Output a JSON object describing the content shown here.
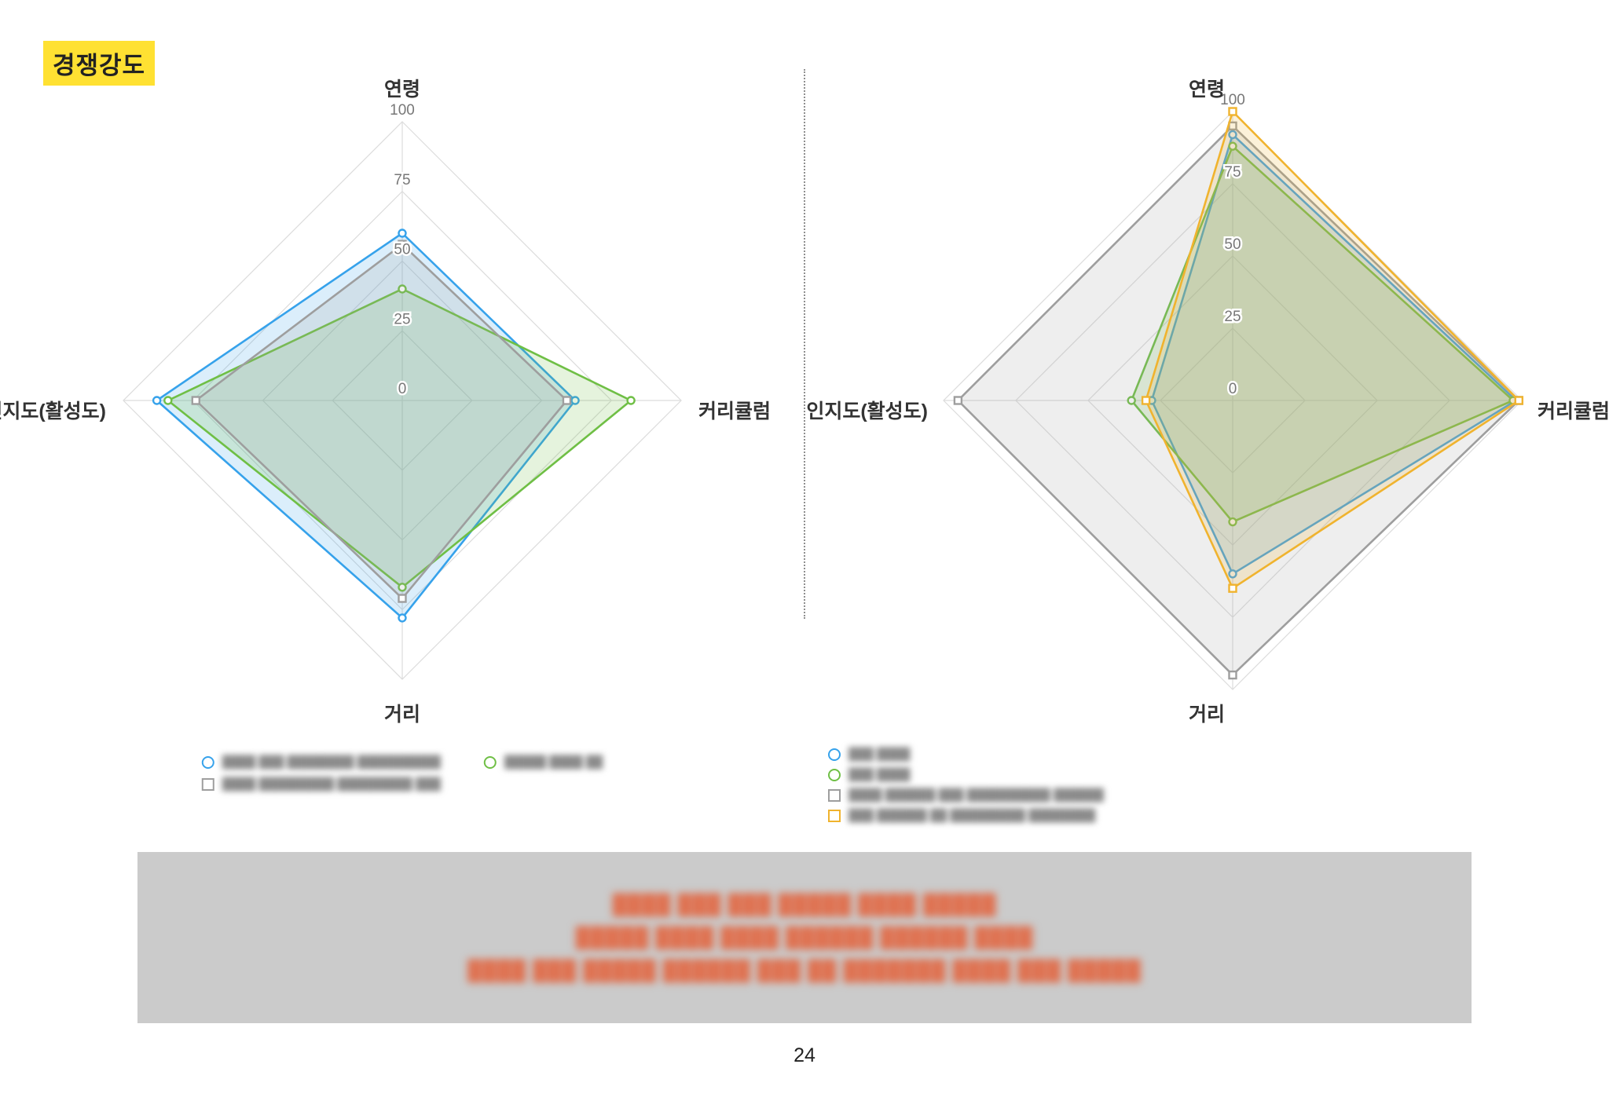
{
  "header": {
    "badge": "경쟁강도"
  },
  "page": {
    "number": "24"
  },
  "chart_data": [
    {
      "type": "radar",
      "title": "",
      "axes": [
        "연령",
        "커리큘럼",
        "거리",
        "인지도(활성도)"
      ],
      "ticks": [
        0,
        25,
        50,
        75,
        100
      ],
      "min": 0,
      "max": 100,
      "grid": true,
      "legend_position": "bottom",
      "series": [
        {
          "name": "████ ███ ████████ ██████████",
          "color": "#36A2EB",
          "point": "circle",
          "values": [
            60,
            62,
            78,
            88
          ]
        },
        {
          "name": "█████ ████ ██",
          "color": "#6FBF45",
          "point": "circle",
          "values": [
            40,
            82,
            67,
            84
          ]
        },
        {
          "name": "████ █████████ █████████ ███",
          "color": "#9E9E9E",
          "point": "square",
          "values": [
            56,
            59,
            71,
            74
          ]
        }
      ]
    },
    {
      "type": "radar",
      "title": "",
      "axes": [
        "연령",
        "커리큘럼",
        "거리",
        "인지도(활성도)"
      ],
      "ticks": [
        0,
        25,
        50,
        75,
        100
      ],
      "min": 0,
      "max": 100,
      "grid": true,
      "legend_position": "bottom",
      "series": [
        {
          "name": "███ ████",
          "color": "#36A2EB",
          "point": "circle",
          "values": [
            92,
            98,
            60,
            28
          ]
        },
        {
          "name": "███ ████",
          "color": "#6FBF45",
          "point": "circle",
          "values": [
            88,
            97,
            42,
            35
          ]
        },
        {
          "name": "████ ██████ ███ ██████████ ██████",
          "color": "#9E9E9E",
          "point": "square",
          "values": [
            95,
            99,
            95,
            95
          ]
        },
        {
          "name": "███ ██████ ██ █████████ ████████",
          "color": "#F0B32E",
          "point": "square",
          "values": [
            100,
            99,
            65,
            30
          ]
        }
      ]
    }
  ],
  "notes": {
    "text_color": "#df7150",
    "lines": [
      "████ ███ ███ █████ ████ █████",
      "█████ ████ ████ ██████ ██████ ████",
      "████ ███ █████ ██████ ███ ██ ███████ ████ ███ █████"
    ]
  }
}
